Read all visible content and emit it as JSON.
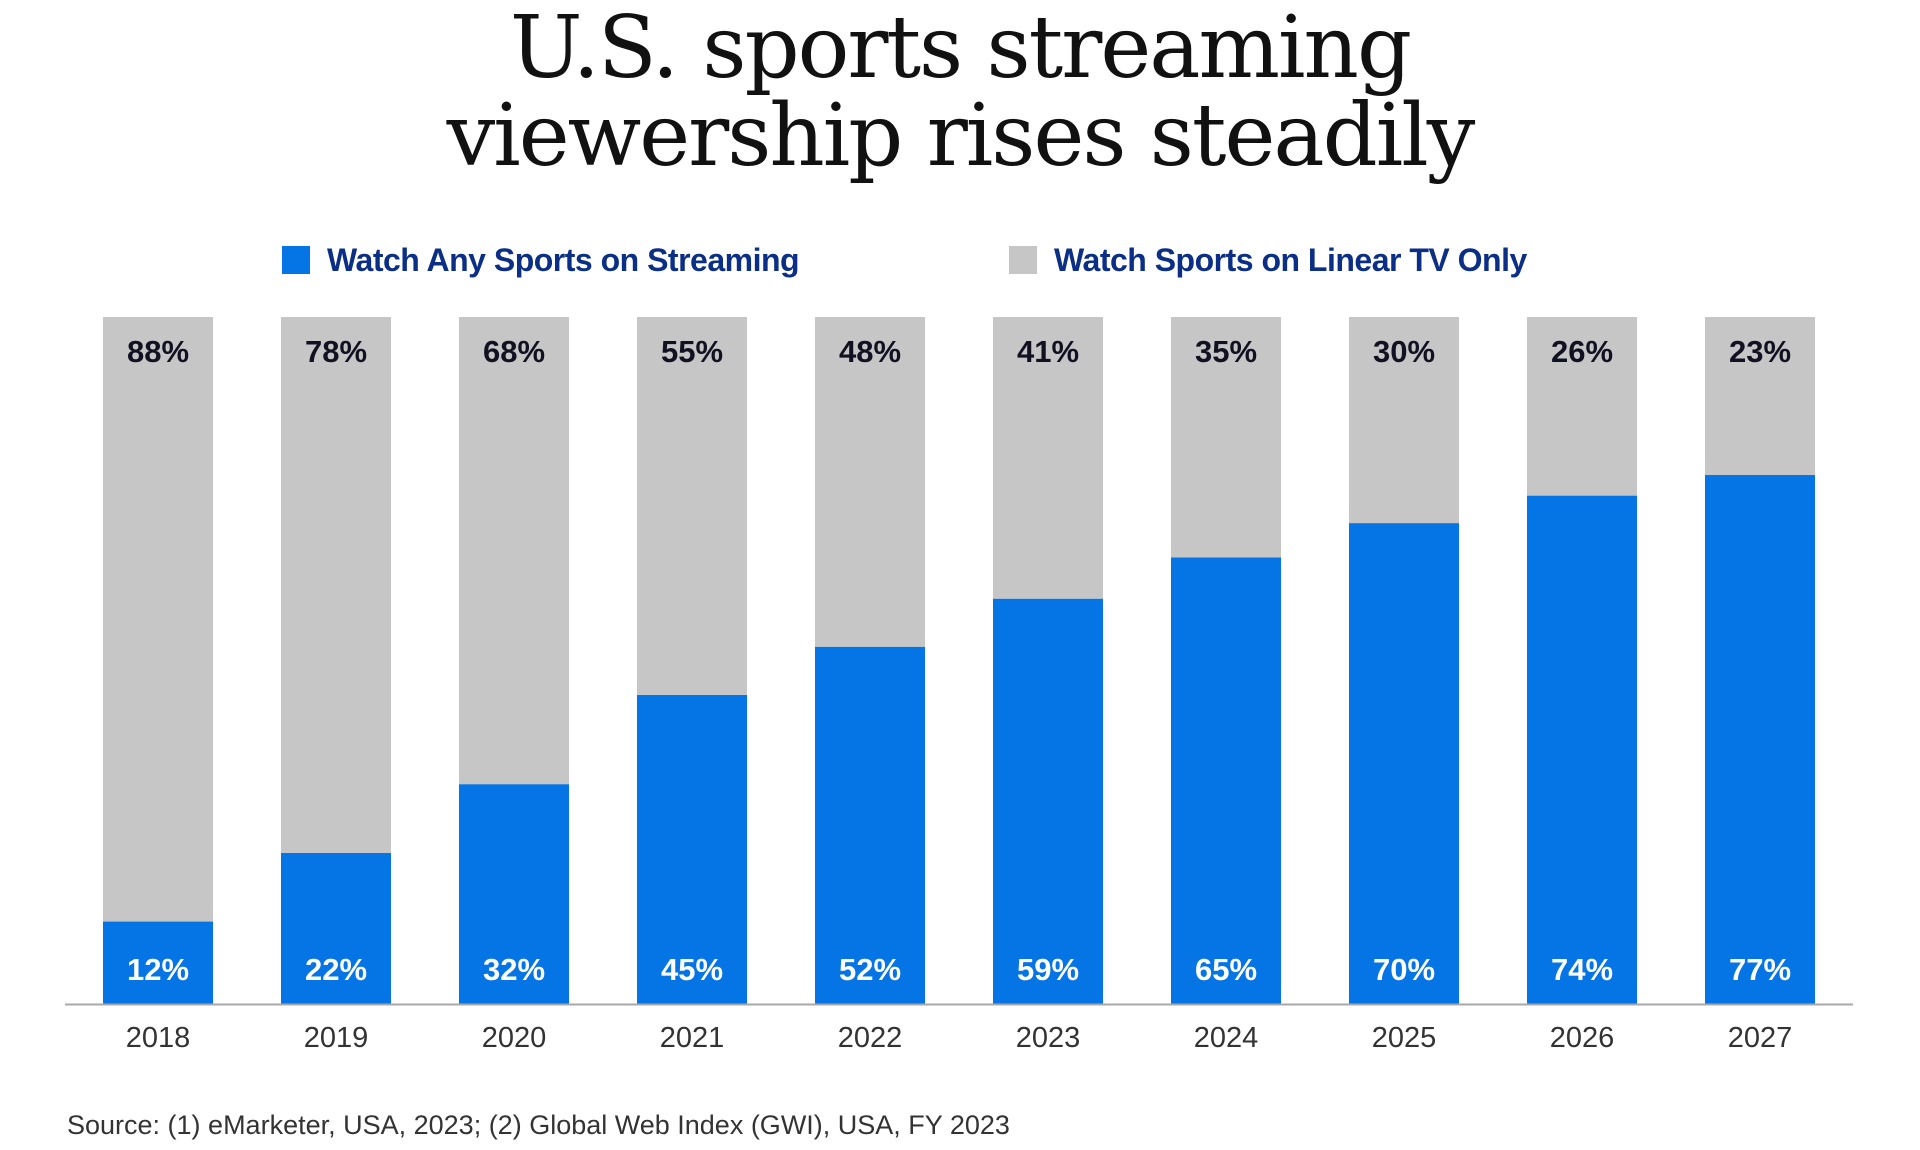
{
  "chart_data": {
    "type": "bar",
    "stacked": true,
    "title_lines": [
      "U.S. sports streaming",
      "viewership rises steadily"
    ],
    "categories": [
      "2018",
      "2019",
      "2020",
      "2021",
      "2022",
      "2023",
      "2024",
      "2025",
      "2026",
      "2027"
    ],
    "series": [
      {
        "name": "Watch Any Sports on Streaming",
        "color": "#0574e4",
        "label_color": "#ffffff",
        "values": [
          12,
          22,
          32,
          45,
          52,
          59,
          65,
          70,
          74,
          77
        ]
      },
      {
        "name": "Watch Sports on Linear TV Only",
        "color": "#c6c6c6",
        "label_color": "#111122",
        "values": [
          88,
          78,
          68,
          55,
          48,
          41,
          35,
          30,
          26,
          23
        ]
      }
    ],
    "ylim": [
      0,
      100
    ],
    "value_suffix": "%",
    "grid": false,
    "legend": "top",
    "xlabel": "",
    "ylabel": "",
    "source": "Source: (1) eMarketer, USA, 2023; (2) Global Web Index (GWI), USA, FY 2023"
  }
}
